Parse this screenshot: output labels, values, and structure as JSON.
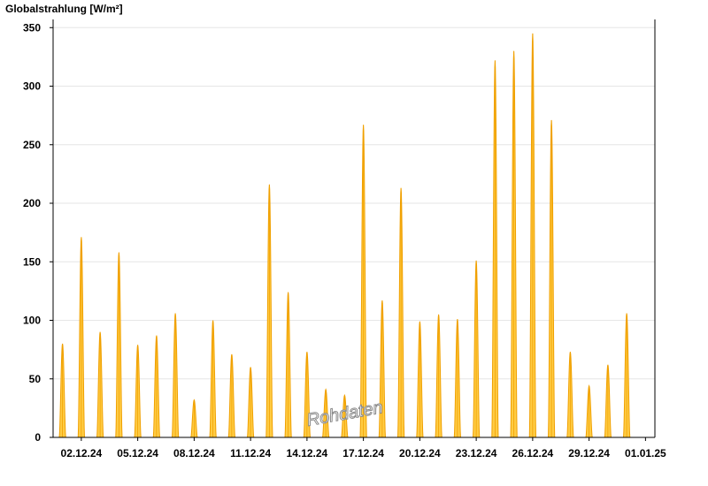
{
  "chart_data": {
    "type": "area",
    "title": "",
    "ylabel": "Globalstrahlung [W/m²]",
    "xlabel": "",
    "ylim": [
      0,
      357
    ],
    "yticks": [
      0,
      50,
      100,
      150,
      200,
      250,
      300,
      350
    ],
    "x_start": "2024-12-01",
    "x_end": "2025-01-01",
    "xticks": [
      "02.12.24",
      "05.12.24",
      "08.12.24",
      "11.12.24",
      "14.12.24",
      "17.12.24",
      "20.12.24",
      "23.12.24",
      "26.12.24",
      "29.12.24",
      "01.01.25"
    ],
    "grid": "horizontal",
    "fill_color": "#ffcc44",
    "line_color": "#f0a000",
    "watermark": "Rohdaten",
    "series": [
      {
        "x": [
          "2024-12-01",
          "2024-12-02",
          "2024-12-03",
          "2024-12-04",
          "2024-12-05",
          "2024-12-06",
          "2024-12-07",
          "2024-12-08",
          "2024-12-09",
          "2024-12-10",
          "2024-12-11",
          "2024-12-12",
          "2024-12-13",
          "2024-12-14",
          "2024-12-15",
          "2024-12-16",
          "2024-12-17",
          "2024-12-18",
          "2024-12-19",
          "2024-12-20",
          "2024-12-21",
          "2024-12-22",
          "2024-12-23",
          "2024-12-24",
          "2024-12-25",
          "2024-12-26",
          "2024-12-27",
          "2024-12-28",
          "2024-12-29",
          "2024-12-30",
          "2024-12-31",
          "2025-01-01"
        ],
        "values": [
          80,
          171,
          90,
          158,
          79,
          87,
          106,
          32,
          100,
          71,
          60,
          216,
          124,
          73,
          41,
          36,
          267,
          117,
          213,
          99,
          105,
          101,
          151,
          322,
          330,
          345,
          271,
          73,
          44,
          62,
          106,
          0
        ]
      }
    ]
  }
}
